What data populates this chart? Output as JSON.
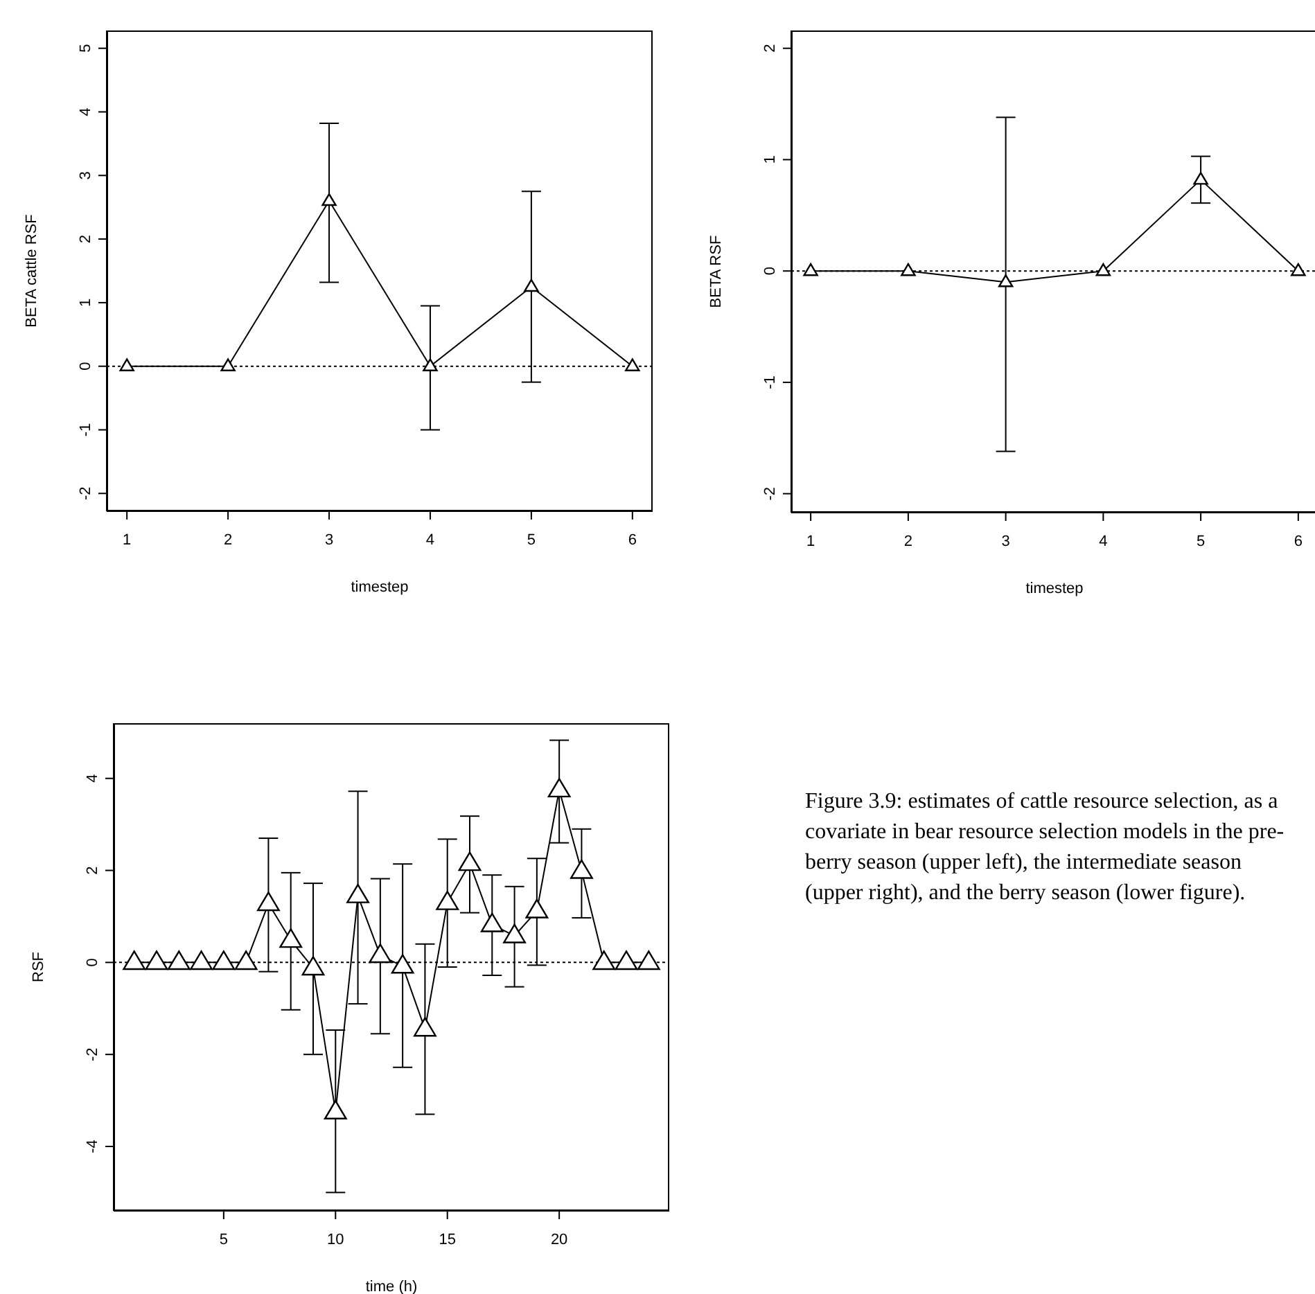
{
  "chart_data": [
    {
      "type": "line",
      "xlabel": "timestep",
      "ylabel": "BETA cattle RSF",
      "x": [
        1,
        2,
        3,
        4,
        5,
        6
      ],
      "color": "#000000",
      "marker": "triangle",
      "line_style": "solid",
      "xlim": [
        0.8,
        6.2
      ],
      "ylim": [
        -2.28,
        5.28
      ],
      "xticks": [
        1,
        2,
        3,
        4,
        5,
        6
      ],
      "yticks": [
        -2,
        -1,
        0,
        1,
        2,
        3,
        4,
        5
      ],
      "values": [
        0,
        0,
        2.6,
        0,
        1.25,
        0
      ],
      "errors": [
        null,
        null,
        [
          1.32,
          3.82
        ],
        [
          -1,
          0.95
        ],
        [
          -0.25,
          2.75
        ],
        null
      ],
      "ref_lines": [
        {
          "axis": "y",
          "value": 0,
          "line_style": "dotted",
          "color": "#000000"
        }
      ]
    },
    {
      "type": "line",
      "xlabel": "timestep",
      "ylabel": "BETA RSF",
      "x": [
        1,
        2,
        3,
        4,
        5,
        6
      ],
      "color": "#000000",
      "marker": "triangle",
      "line_style": "solid",
      "xlim": [
        0.8,
        6.2
      ],
      "ylim": [
        -2.17,
        2.16
      ],
      "xticks": [
        1,
        2,
        3,
        4,
        5,
        6
      ],
      "yticks": [
        -2,
        -1,
        0,
        1,
        2
      ],
      "values": [
        0,
        0,
        -0.1,
        0,
        0.82,
        0
      ],
      "errors": [
        null,
        null,
        [
          -1.62,
          1.38
        ],
        null,
        [
          0.61,
          1.03
        ],
        null
      ],
      "ref_lines": [
        {
          "axis": "y",
          "value": 0,
          "line_style": "dotted",
          "color": "#000000"
        }
      ]
    },
    {
      "type": "line",
      "xlabel": "time (h)",
      "ylabel": "RSF",
      "x": [
        1,
        2,
        3,
        4,
        5,
        6,
        7,
        8,
        9,
        10,
        11,
        12,
        13,
        14,
        15,
        16,
        17,
        18,
        19,
        20,
        21,
        22,
        23,
        24
      ],
      "color": "#000000",
      "marker": "triangle",
      "line_style": "solid",
      "xlim": [
        0.08,
        24.92
      ],
      "ylim": [
        -5.4,
        5.2
      ],
      "xticks": [
        5,
        10,
        15,
        20
      ],
      "yticks": [
        -4,
        -2,
        0,
        2,
        4
      ],
      "values": [
        0,
        0,
        0,
        0,
        0,
        0,
        1.28,
        0.48,
        -0.12,
        -3.25,
        1.45,
        0.15,
        -0.08,
        -1.45,
        1.3,
        2.15,
        0.82,
        0.58,
        1.12,
        3.75,
        1.98,
        0,
        0,
        0
      ],
      "errors": [
        null,
        null,
        null,
        null,
        null,
        null,
        [
          -0.2,
          2.7
        ],
        [
          -1.03,
          1.95
        ],
        [
          -2.0,
          1.72
        ],
        [
          -5.0,
          -1.47
        ],
        [
          -0.9,
          3.72
        ],
        [
          -1.55,
          1.82
        ],
        [
          -2.28,
          2.14
        ],
        [
          -3.3,
          0.4
        ],
        [
          -0.1,
          2.68
        ],
        [
          1.08,
          3.18
        ],
        [
          -0.28,
          1.9
        ],
        [
          -0.53,
          1.65
        ],
        [
          -0.06,
          2.26
        ],
        [
          2.6,
          4.83
        ],
        [
          0.97,
          2.9
        ],
        null,
        null,
        null
      ],
      "ref_lines": [
        {
          "axis": "y",
          "value": 0,
          "line_style": "dotted",
          "color": "#000000"
        }
      ],
      "annotations": [
        "Figure 3.9: estimates of cattle resource selection, as a covariate in bear resource selection models in the pre-berry season (upper left), the intermediate season (upper right), and the berry season (lower figure)."
      ]
    }
  ]
}
